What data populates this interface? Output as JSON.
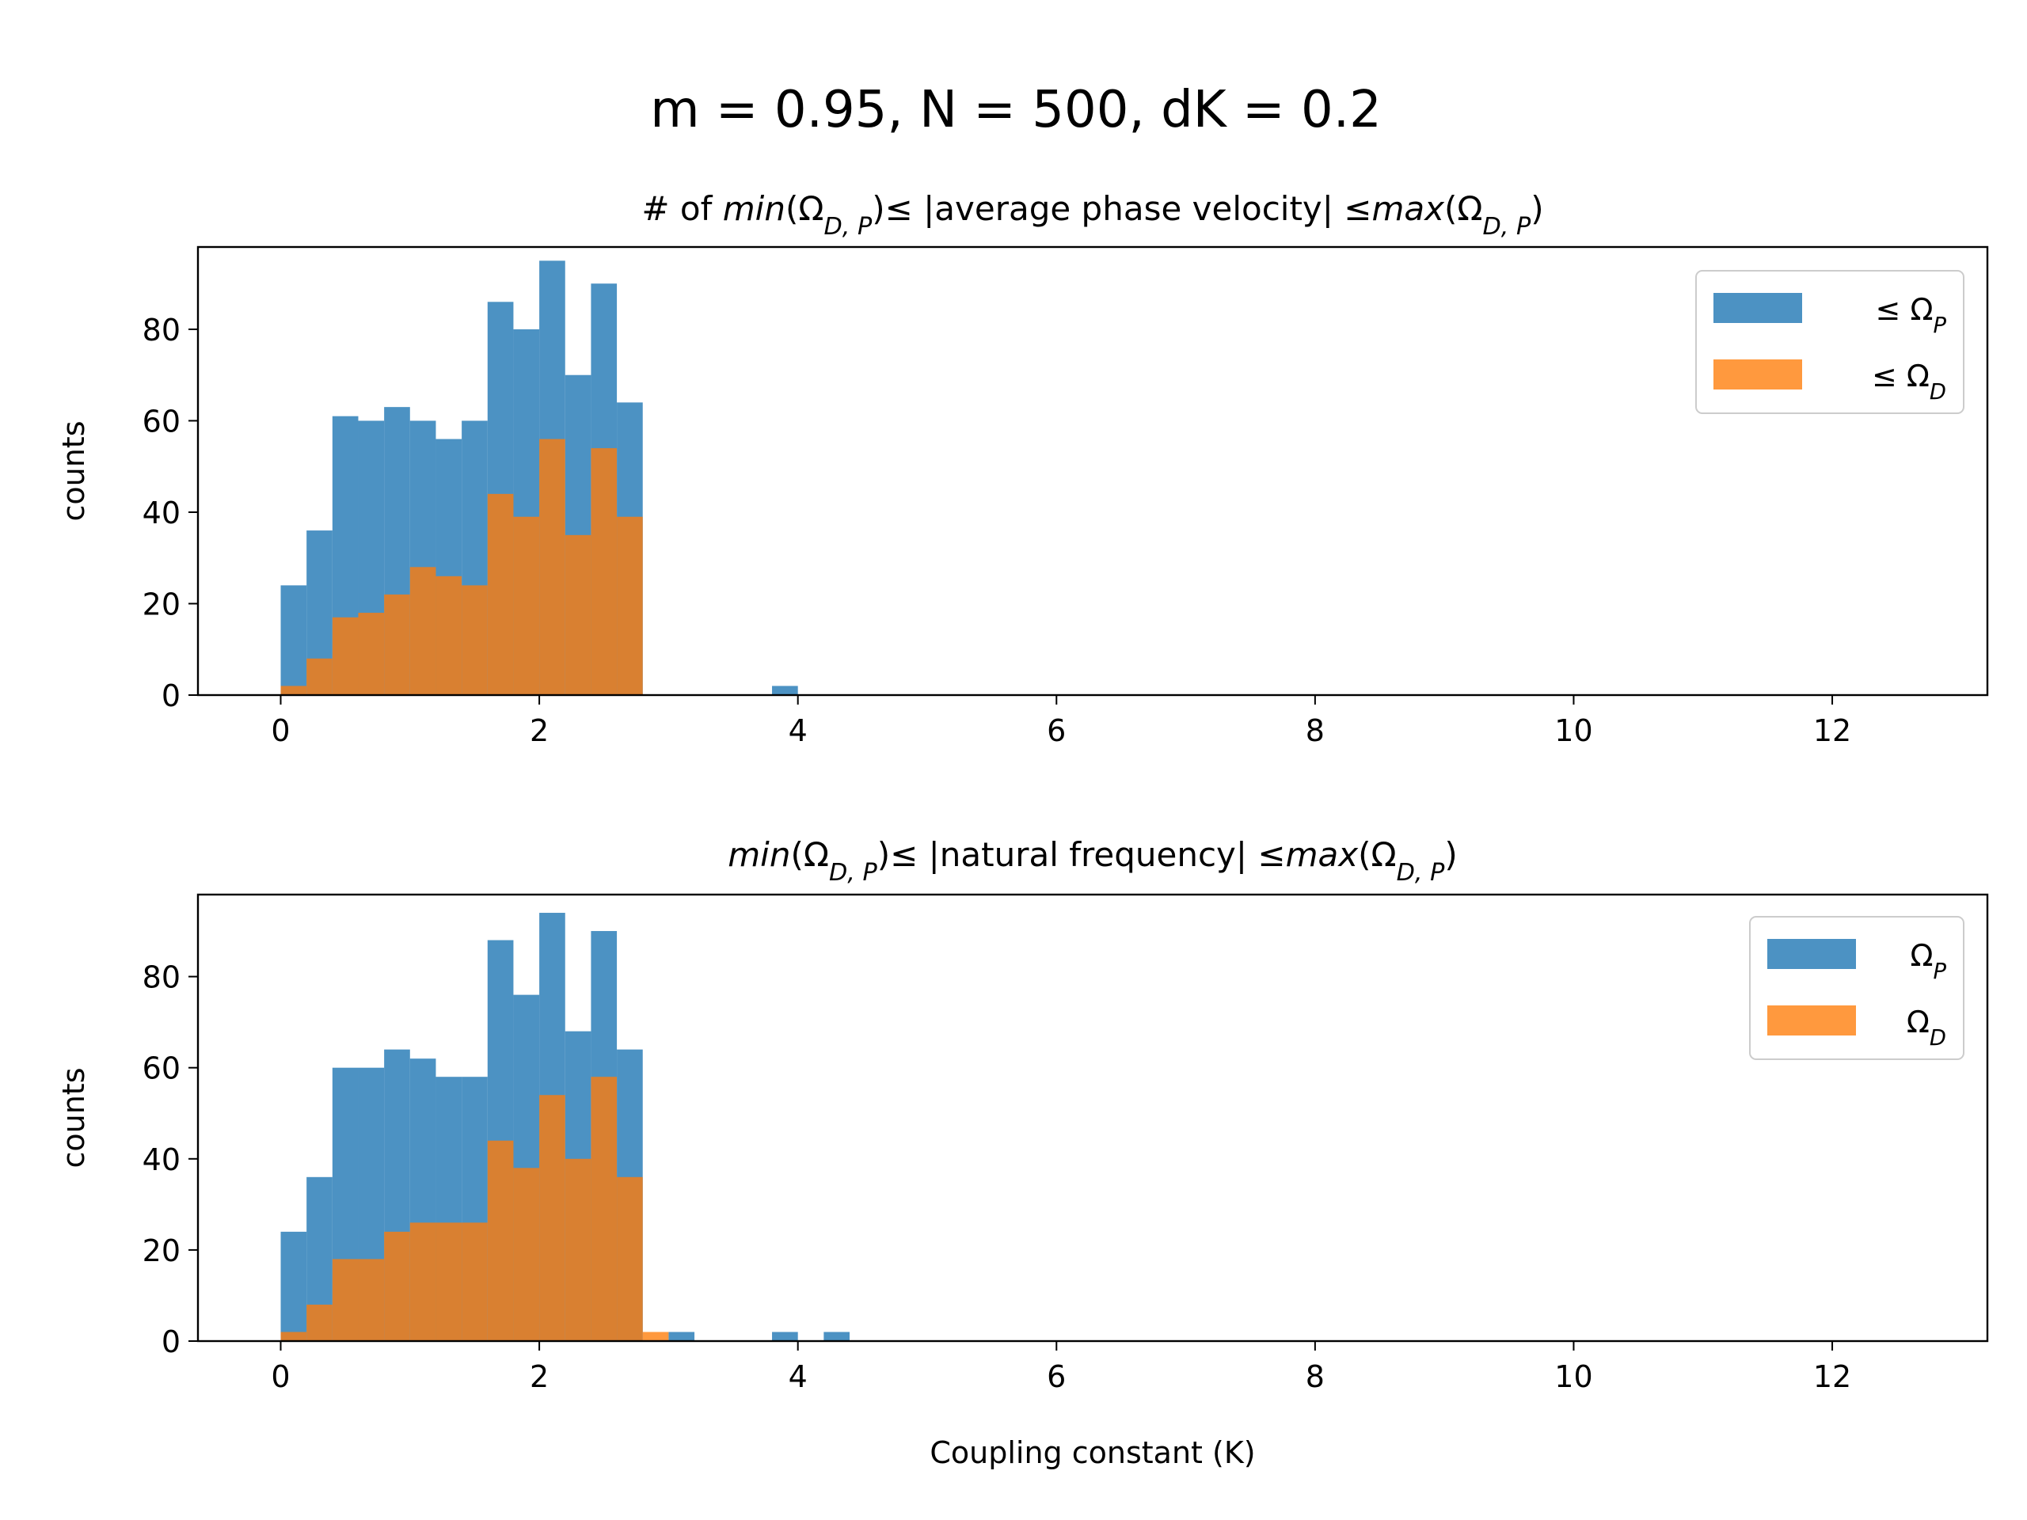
{
  "figure": {
    "suptitle": "m = 0.95, N = 500, dK = 0.2"
  },
  "colors": {
    "series_p": "#1f77b4",
    "series_d": "#ff7f0e",
    "overlap": "#d98031"
  },
  "chart_data": [
    {
      "type": "bar",
      "title_parts": [
        {
          "t": "# of "
        },
        {
          "t": "min",
          "i": true
        },
        {
          "t": "(Ω"
        },
        {
          "t": "D, P",
          "sub": true,
          "i": true
        },
        {
          "t": ")≤  |average phase velocity|  ≤"
        },
        {
          "t": "max",
          "i": true
        },
        {
          "t": "(Ω"
        },
        {
          "t": "D, P",
          "sub": true,
          "i": true
        },
        {
          "t": ")"
        }
      ],
      "xlabel": "",
      "ylabel": "counts",
      "xlim": [
        -0.64,
        13.2
      ],
      "ylim": [
        0,
        98
      ],
      "xticks": [
        0,
        2,
        4,
        6,
        8,
        10,
        12
      ],
      "yticks": [
        0,
        20,
        40,
        60,
        80
      ],
      "bin_width": 0.2,
      "legend_position": "upper right",
      "series": [
        {
          "legend_parts": [
            {
              "t": "≤ Ω"
            },
            {
              "t": "P",
              "sub": true,
              "i": true
            }
          ],
          "color": "#1f77b4",
          "bins": [
            [
              0.0,
              24
            ],
            [
              0.2,
              36
            ],
            [
              0.4,
              61
            ],
            [
              0.6,
              60
            ],
            [
              0.8,
              63
            ],
            [
              1.0,
              60
            ],
            [
              1.2,
              56
            ],
            [
              1.4,
              60
            ],
            [
              1.6,
              86
            ],
            [
              1.8,
              80
            ],
            [
              2.0,
              95
            ],
            [
              2.2,
              70
            ],
            [
              2.4,
              90
            ],
            [
              2.6,
              64
            ],
            [
              3.8,
              2
            ]
          ]
        },
        {
          "legend_parts": [
            {
              "t": "≤ Ω"
            },
            {
              "t": "D",
              "sub": true,
              "i": true
            }
          ],
          "color": "#ff7f0e",
          "bins": [
            [
              0.0,
              2
            ],
            [
              0.2,
              8
            ],
            [
              0.4,
              17
            ],
            [
              0.6,
              18
            ],
            [
              0.8,
              22
            ],
            [
              1.0,
              28
            ],
            [
              1.2,
              26
            ],
            [
              1.4,
              24
            ],
            [
              1.6,
              44
            ],
            [
              1.8,
              39
            ],
            [
              2.0,
              56
            ],
            [
              2.2,
              35
            ],
            [
              2.4,
              54
            ],
            [
              2.6,
              39
            ]
          ]
        }
      ]
    },
    {
      "type": "bar",
      "title_parts": [
        {
          "t": "min",
          "i": true
        },
        {
          "t": "(Ω"
        },
        {
          "t": "D, P",
          "sub": true,
          "i": true
        },
        {
          "t": ")≤  |natural frequency|  ≤"
        },
        {
          "t": "max",
          "i": true
        },
        {
          "t": "(Ω"
        },
        {
          "t": "D, P",
          "sub": true,
          "i": true
        },
        {
          "t": ")"
        }
      ],
      "xlabel": "Coupling constant (K)",
      "ylabel": "counts",
      "xlim": [
        -0.64,
        13.2
      ],
      "ylim": [
        0,
        98
      ],
      "xticks": [
        0,
        2,
        4,
        6,
        8,
        10,
        12
      ],
      "yticks": [
        0,
        20,
        40,
        60,
        80
      ],
      "bin_width": 0.2,
      "legend_position": "upper right",
      "series": [
        {
          "legend_parts": [
            {
              "t": "Ω"
            },
            {
              "t": "P",
              "sub": true,
              "i": true
            }
          ],
          "color": "#1f77b4",
          "bins": [
            [
              0.0,
              24
            ],
            [
              0.2,
              36
            ],
            [
              0.4,
              60
            ],
            [
              0.6,
              60
            ],
            [
              0.8,
              64
            ],
            [
              1.0,
              62
            ],
            [
              1.2,
              58
            ],
            [
              1.4,
              58
            ],
            [
              1.6,
              88
            ],
            [
              1.8,
              76
            ],
            [
              2.0,
              94
            ],
            [
              2.2,
              68
            ],
            [
              2.4,
              90
            ],
            [
              2.6,
              64
            ],
            [
              3.0,
              2
            ],
            [
              3.8,
              2
            ],
            [
              4.2,
              2
            ]
          ]
        },
        {
          "legend_parts": [
            {
              "t": "Ω"
            },
            {
              "t": "D",
              "sub": true,
              "i": true
            }
          ],
          "color": "#ff7f0e",
          "bins": [
            [
              0.0,
              2
            ],
            [
              0.2,
              8
            ],
            [
              0.4,
              18
            ],
            [
              0.6,
              18
            ],
            [
              0.8,
              24
            ],
            [
              1.0,
              26
            ],
            [
              1.2,
              26
            ],
            [
              1.4,
              26
            ],
            [
              1.6,
              44
            ],
            [
              1.8,
              38
            ],
            [
              2.0,
              54
            ],
            [
              2.2,
              40
            ],
            [
              2.4,
              58
            ],
            [
              2.6,
              36
            ],
            [
              2.8,
              2
            ]
          ]
        }
      ]
    }
  ]
}
